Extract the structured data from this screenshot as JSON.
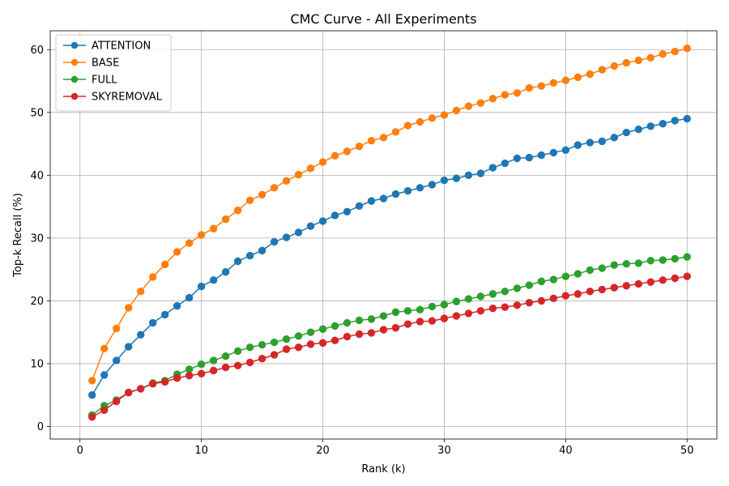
{
  "chart_data": {
    "type": "line",
    "title": "CMC Curve - All Experiments",
    "xlabel": "Rank (k)",
    "ylabel": "Top-k Recall (%)",
    "xlim": [
      -2.45,
      52.45
    ],
    "ylim": [
      -2.0,
      63.0
    ],
    "x_ticks": [
      0,
      10,
      20,
      30,
      40,
      50
    ],
    "y_ticks": [
      0,
      10,
      20,
      30,
      40,
      50,
      60
    ],
    "grid": true,
    "legend_position": "top-left",
    "marker": "circle",
    "x": [
      1,
      2,
      3,
      4,
      5,
      6,
      7,
      8,
      9,
      10,
      11,
      12,
      13,
      14,
      15,
      16,
      17,
      18,
      19,
      20,
      21,
      22,
      23,
      24,
      25,
      26,
      27,
      28,
      29,
      30,
      31,
      32,
      33,
      34,
      35,
      36,
      37,
      38,
      39,
      40,
      41,
      42,
      43,
      44,
      45,
      46,
      47,
      48,
      49,
      50
    ],
    "series": [
      {
        "name": "ATTENTION",
        "color": "#1f77b4",
        "values": [
          5.0,
          8.2,
          10.5,
          12.7,
          14.6,
          16.5,
          17.8,
          19.2,
          20.5,
          22.3,
          23.3,
          24.6,
          26.3,
          27.2,
          28.0,
          29.4,
          30.1,
          30.9,
          31.9,
          32.7,
          33.6,
          34.2,
          35.1,
          35.9,
          36.3,
          37.0,
          37.5,
          38.0,
          38.5,
          39.2,
          39.5,
          40.0,
          40.3,
          41.2,
          41.9,
          42.7,
          42.8,
          43.2,
          43.6,
          44.0,
          44.8,
          45.2,
          45.4,
          46.0,
          46.8,
          47.3,
          47.8,
          48.2,
          48.7,
          49.0
        ]
      },
      {
        "name": "BASE",
        "color": "#ff7f0e",
        "values": [
          7.3,
          12.4,
          15.6,
          18.9,
          21.5,
          23.8,
          25.8,
          27.8,
          29.2,
          30.5,
          31.5,
          33.0,
          34.4,
          36.0,
          36.9,
          38.0,
          39.1,
          40.1,
          41.1,
          42.1,
          43.1,
          43.8,
          44.6,
          45.5,
          46.0,
          46.9,
          47.9,
          48.5,
          49.1,
          49.6,
          50.3,
          51.0,
          51.5,
          52.2,
          52.8,
          53.1,
          53.9,
          54.2,
          54.7,
          55.1,
          55.6,
          56.1,
          56.8,
          57.4,
          57.9,
          58.3,
          58.7,
          59.3,
          59.7,
          60.2
        ]
      },
      {
        "name": "FULL",
        "color": "#2ca02c",
        "values": [
          1.8,
          3.3,
          4.2,
          5.4,
          6.0,
          6.9,
          7.3,
          8.3,
          9.1,
          9.9,
          10.5,
          11.2,
          12.0,
          12.6,
          13.0,
          13.4,
          13.9,
          14.4,
          15.0,
          15.5,
          16.0,
          16.5,
          16.9,
          17.1,
          17.6,
          18.2,
          18.4,
          18.6,
          19.1,
          19.4,
          19.9,
          20.3,
          20.7,
          21.1,
          21.5,
          22.0,
          22.5,
          23.1,
          23.4,
          23.9,
          24.3,
          24.9,
          25.2,
          25.7,
          25.9,
          26.0,
          26.4,
          26.5,
          26.7,
          27.0
        ]
      },
      {
        "name": "SKYREMOVAL",
        "color": "#d62728",
        "values": [
          1.5,
          2.6,
          4.0,
          5.4,
          6.0,
          6.8,
          7.1,
          7.7,
          8.1,
          8.4,
          8.9,
          9.4,
          9.7,
          10.2,
          10.8,
          11.4,
          12.3,
          12.6,
          13.1,
          13.3,
          13.7,
          14.3,
          14.7,
          14.9,
          15.4,
          15.7,
          16.3,
          16.7,
          16.8,
          17.2,
          17.6,
          18.0,
          18.4,
          18.8,
          19.0,
          19.3,
          19.7,
          20.0,
          20.4,
          20.8,
          21.1,
          21.5,
          21.8,
          22.1,
          22.4,
          22.7,
          23.0,
          23.3,
          23.6,
          23.9
        ]
      }
    ]
  }
}
